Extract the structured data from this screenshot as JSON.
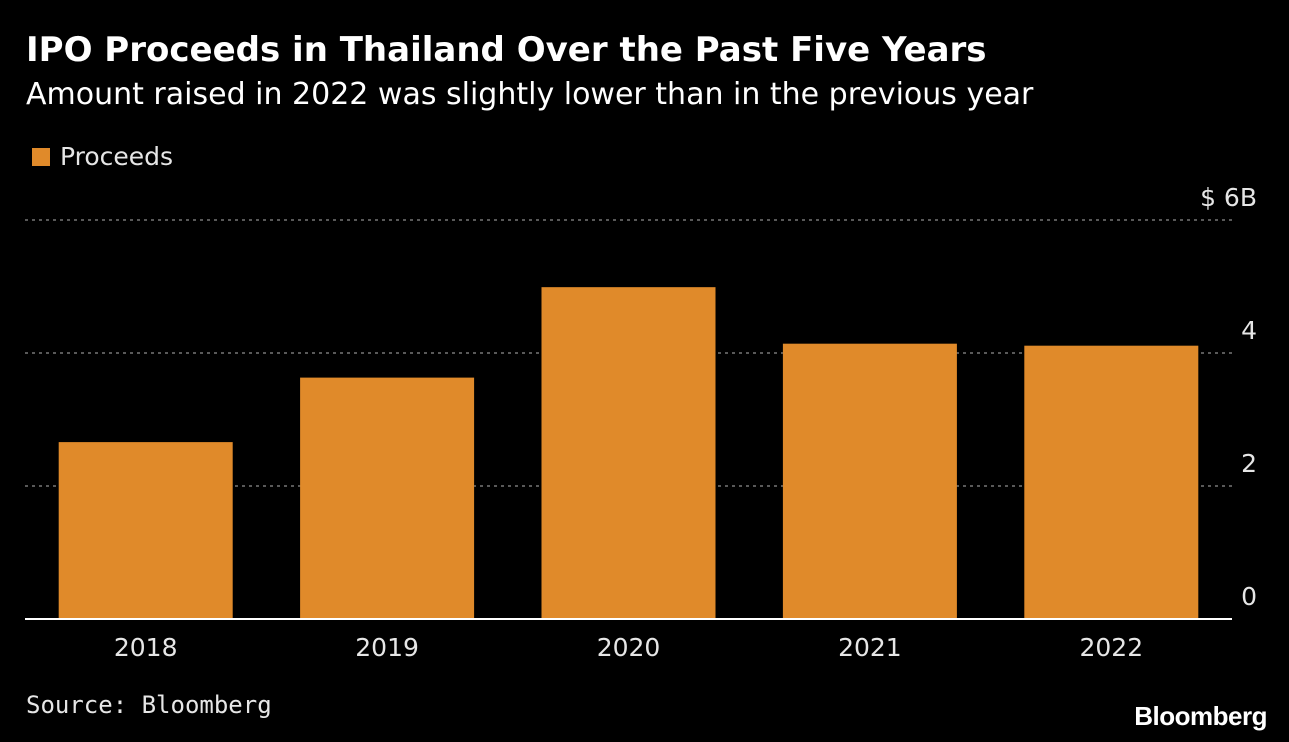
{
  "header": {
    "title": "IPO Proceeds in Thailand Over the Past Five Years",
    "subtitle": "Amount raised in 2022 was slightly lower than in the previous year"
  },
  "legend": {
    "label": "Proceeds"
  },
  "colors": {
    "background": "#000000",
    "bar": "#e08a2a",
    "grid": "#777777",
    "axis": "#ffffff",
    "text": "#e6e6e6"
  },
  "chart_data": {
    "type": "bar",
    "title": "IPO Proceeds in Thailand Over the Past Five Years",
    "subtitle": "Amount raised in 2022 was slightly lower than in the previous year",
    "categories": [
      "2018",
      "2019",
      "2020",
      "2021",
      "2022"
    ],
    "series": [
      {
        "name": "Proceeds",
        "values": [
          2.66,
          3.63,
          4.99,
          4.14,
          4.11
        ]
      }
    ],
    "ylim": [
      0,
      6
    ],
    "yticks": [
      0,
      2,
      4,
      6
    ],
    "ytick_labels": [
      "0",
      "2",
      "4",
      "$ 6B"
    ],
    "y_axis_position": "right",
    "grid": true,
    "legend_position": "top-left"
  },
  "footer": {
    "source": "Source: Bloomberg",
    "brand": "Bloomberg"
  }
}
